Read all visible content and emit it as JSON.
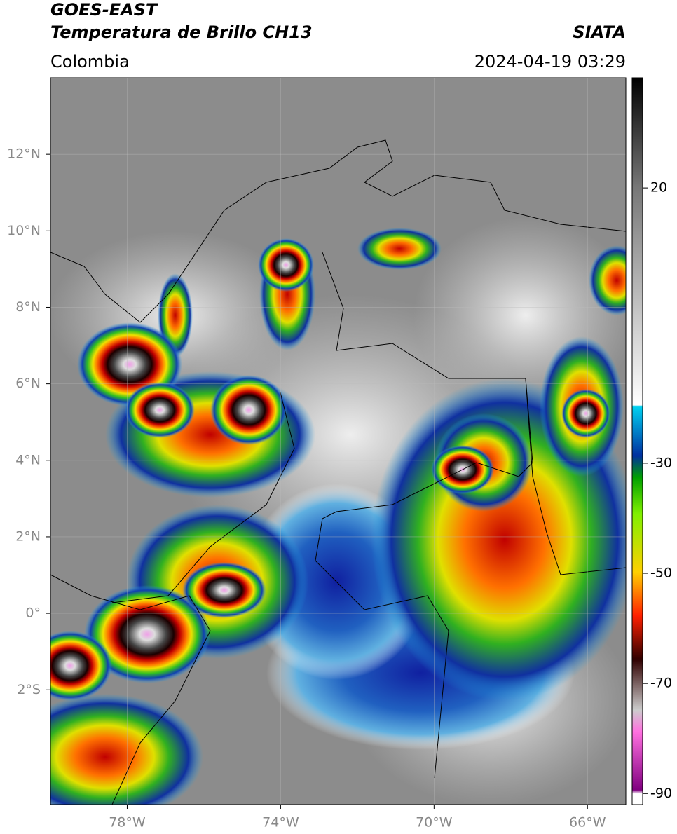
{
  "header": {
    "title": "GOES-EAST",
    "subtitle": "Temperatura de Brillo CH13",
    "source": "SIATA",
    "region": "Colombia",
    "datetime": "2024-04-19 03:29"
  },
  "map": {
    "lonlim": [
      -80,
      -65
    ],
    "latlim": [
      -5,
      14
    ],
    "lon_ticks": [
      {
        "value": -78,
        "label": "78°W"
      },
      {
        "value": -74,
        "label": "74°W"
      },
      {
        "value": -70,
        "label": "70°W"
      },
      {
        "value": -66,
        "label": "66°W"
      }
    ],
    "lat_ticks": [
      {
        "value": 12,
        "label": "12°N"
      },
      {
        "value": 10,
        "label": "10°N"
      },
      {
        "value": 8,
        "label": "8°N"
      },
      {
        "value": 6,
        "label": "6°N"
      },
      {
        "value": 4,
        "label": "4°N"
      },
      {
        "value": 2,
        "label": "2°N"
      },
      {
        "value": 0,
        "label": "0°"
      },
      {
        "value": -2,
        "label": "2°S"
      }
    ]
  },
  "colorbar": {
    "range": [
      -92,
      40
    ],
    "ticks": [
      20,
      -30,
      -50,
      -70,
      -90
    ]
  }
}
